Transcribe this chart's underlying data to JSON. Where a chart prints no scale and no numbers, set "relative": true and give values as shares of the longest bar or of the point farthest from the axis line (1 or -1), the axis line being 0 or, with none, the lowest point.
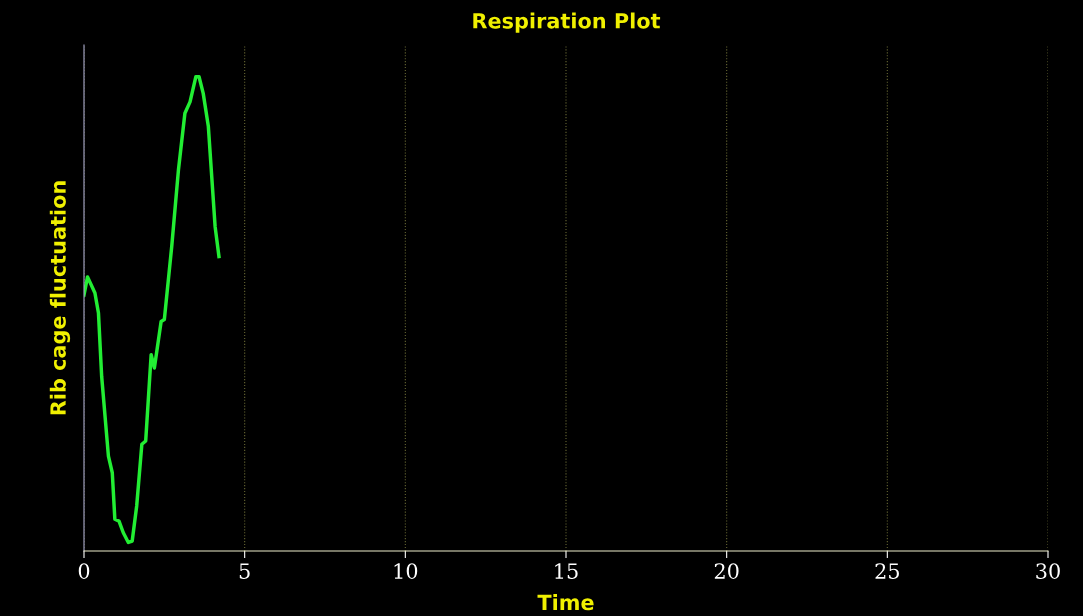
{
  "chart_data": {
    "type": "line",
    "title": "Respiration Plot",
    "xlabel": "Time",
    "ylabel": "Rib cage fluctuation",
    "relative": true,
    "xlim": [
      0,
      30
    ],
    "xticks": [
      0,
      5,
      10,
      15,
      20,
      25,
      30
    ],
    "grid": "x",
    "tick_labels": "x",
    "line_style": "solid",
    "series": [
      {
        "color": "#22ee33",
        "x": [
          0,
          0.11,
          0.34,
          0.45,
          0.55,
          0.76,
          0.88,
          0.96,
          1.09,
          1.22,
          1.38,
          1.5,
          1.64,
          1.8,
          1.92,
          2.09,
          2.19,
          2.4,
          2.5,
          2.73,
          2.94,
          3.14,
          3.3,
          3.48,
          3.58,
          3.71,
          3.87,
          4.08,
          4.2
        ],
        "values": [
          0.54,
          0.578,
          0.544,
          0.502,
          0.368,
          0.2,
          0.165,
          0.067,
          0.063,
          0.039,
          0.018,
          0.021,
          0.095,
          0.225,
          0.232,
          0.414,
          0.386,
          0.484,
          0.488,
          0.642,
          0.804,
          0.923,
          0.947,
          1,
          1,
          0.965,
          0.895,
          0.684,
          0.621
        ]
      }
    ]
  }
}
